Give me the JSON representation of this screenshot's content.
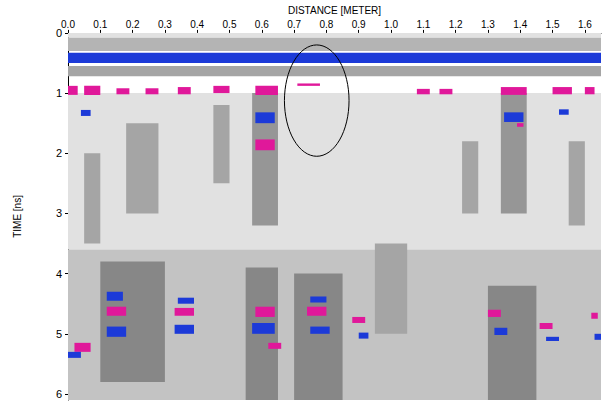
{
  "chart_data": {
    "type": "heatmap",
    "xlabel": "DISTANCE [METER]",
    "ylabel": "TIME [ns]",
    "xlim": [
      0,
      1.65
    ],
    "ylim": [
      0,
      6.1
    ],
    "xticks": [
      {
        "value": 0,
        "label": "0.0"
      },
      0.1,
      0.2,
      0.3,
      0.4,
      0.5,
      0.6,
      0.7,
      0.8,
      0.9,
      {
        "value": 1,
        "label": "1.0"
      },
      1.1,
      1.2,
      1.3,
      1.4,
      1.5,
      1.6
    ],
    "yticks": [
      0,
      1,
      2,
      3,
      4,
      5,
      6
    ],
    "grid": false,
    "highlight": {
      "x": [
        0.67,
        0.87
      ],
      "y": [
        0.2,
        2.05
      ]
    },
    "rects": [
      [
        0,
        1.65,
        0.0,
        0.08,
        0.1
      ],
      [
        0,
        1.65,
        0.08,
        0.3,
        0.25
      ],
      [
        0,
        1.65,
        0.33,
        0.5,
        -0.95
      ],
      [
        0,
        1.65,
        0.55,
        0.72,
        0.3
      ],
      [
        0,
        1.65,
        1.0,
        3.6,
        0.1
      ],
      [
        0,
        1.65,
        3.6,
        6.1,
        0.2
      ],
      [
        0.57,
        0.65,
        1.0,
        3.2,
        0.35
      ],
      [
        1.34,
        1.42,
        1.0,
        3.0,
        0.35
      ],
      [
        0.18,
        0.28,
        1.5,
        3.0,
        0.3
      ],
      [
        0.45,
        0.5,
        1.2,
        2.5,
        0.3
      ],
      [
        1.22,
        1.27,
        1.8,
        3.0,
        0.3
      ],
      [
        0.05,
        0.1,
        2.0,
        3.5,
        0.3
      ],
      [
        1.55,
        1.6,
        1.8,
        3.2,
        0.3
      ],
      [
        0.1,
        0.3,
        3.8,
        5.8,
        0.4
      ],
      [
        0.55,
        0.65,
        3.9,
        6.1,
        0.4
      ],
      [
        0.7,
        0.85,
        4.0,
        6.1,
        0.4
      ],
      [
        1.3,
        1.45,
        4.2,
        6.1,
        0.4
      ],
      [
        0.95,
        1.05,
        3.5,
        5.0,
        0.3
      ],
      [
        0.0,
        0.03,
        0.88,
        1.03,
        0.9
      ],
      [
        0.05,
        0.1,
        0.88,
        1.03,
        0.9
      ],
      [
        0.15,
        0.19,
        0.92,
        1.02,
        0.8
      ],
      [
        0.24,
        0.28,
        0.92,
        1.02,
        0.8
      ],
      [
        0.34,
        0.38,
        0.9,
        1.02,
        0.9
      ],
      [
        0.45,
        0.5,
        0.88,
        1.0,
        0.9
      ],
      [
        0.58,
        0.65,
        0.88,
        1.03,
        0.95
      ],
      [
        0.71,
        0.78,
        0.84,
        0.88,
        0.7
      ],
      [
        1.08,
        1.12,
        0.93,
        1.02,
        0.8
      ],
      [
        1.15,
        1.19,
        0.93,
        1.02,
        0.8
      ],
      [
        1.34,
        1.42,
        0.9,
        1.03,
        0.95
      ],
      [
        1.5,
        1.56,
        0.9,
        1.02,
        0.9
      ],
      [
        1.6,
        1.63,
        0.9,
        1.02,
        0.9
      ],
      [
        0.04,
        0.07,
        1.28,
        1.38,
        -0.8
      ],
      [
        0.58,
        0.64,
        1.32,
        1.5,
        -0.95
      ],
      [
        0.58,
        0.64,
        1.77,
        1.95,
        0.9
      ],
      [
        1.35,
        1.41,
        1.32,
        1.48,
        -0.95
      ],
      [
        1.39,
        1.41,
        1.5,
        1.56,
        0.7
      ],
      [
        1.52,
        1.55,
        1.27,
        1.36,
        -0.8
      ],
      [
        0.12,
        0.17,
        4.3,
        4.45,
        -0.9
      ],
      [
        0.12,
        0.18,
        4.55,
        4.7,
        0.9
      ],
      [
        0.12,
        0.18,
        4.88,
        5.05,
        -0.95
      ],
      [
        0.02,
        0.07,
        5.15,
        5.3,
        0.8
      ],
      [
        0.0,
        0.04,
        5.3,
        5.4,
        -0.7
      ],
      [
        0.34,
        0.39,
        4.4,
        4.5,
        -0.8
      ],
      [
        0.33,
        0.39,
        4.57,
        4.7,
        0.9
      ],
      [
        0.33,
        0.39,
        4.85,
        5.0,
        -0.9
      ],
      [
        0.58,
        0.64,
        4.55,
        4.72,
        0.9
      ],
      [
        0.57,
        0.64,
        4.82,
        5.0,
        -0.95
      ],
      [
        0.62,
        0.66,
        5.15,
        5.25,
        0.7
      ],
      [
        0.75,
        0.8,
        4.38,
        4.48,
        -0.8
      ],
      [
        0.74,
        0.8,
        4.55,
        4.7,
        0.9
      ],
      [
        0.75,
        0.81,
        4.88,
        5.0,
        -0.9
      ],
      [
        0.88,
        0.92,
        4.72,
        4.82,
        0.8
      ],
      [
        0.9,
        0.93,
        4.98,
        5.08,
        -0.7
      ],
      [
        1.3,
        1.34,
        4.6,
        4.72,
        0.8
      ],
      [
        1.32,
        1.36,
        4.9,
        5.02,
        -0.8
      ],
      [
        1.46,
        1.5,
        4.82,
        4.92,
        0.8
      ],
      [
        1.48,
        1.52,
        5.05,
        5.12,
        -0.7
      ],
      [
        1.62,
        1.64,
        4.65,
        4.75,
        0.8
      ],
      [
        1.63,
        1.65,
        5.0,
        5.1,
        -0.7
      ]
    ]
  }
}
